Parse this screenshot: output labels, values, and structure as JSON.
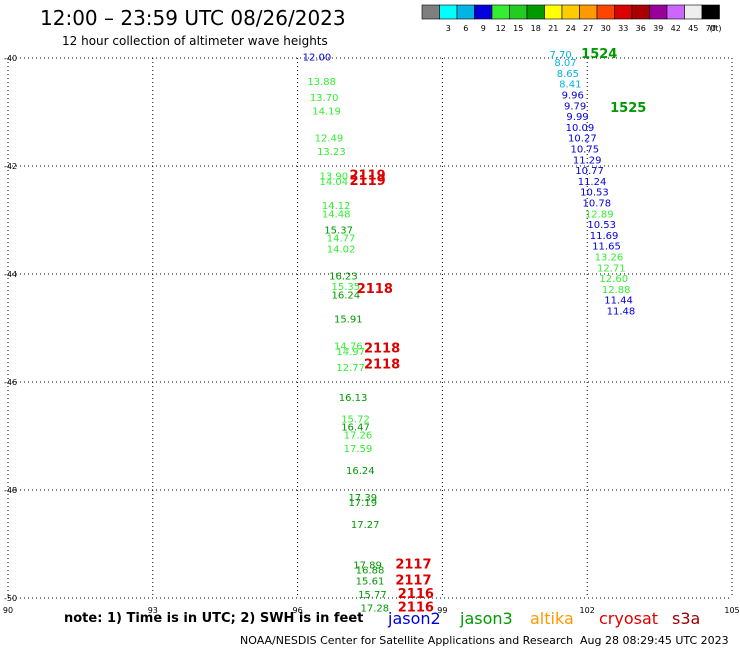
{
  "header": {
    "title": "12:00 – 23:59 UTC 08/26/2023",
    "subtitle": "12 hour collection of altimeter wave heights"
  },
  "legend": {
    "unit": "(ft)",
    "bins": [
      {
        "label": "",
        "color": "#7f7f7f"
      },
      {
        "label": "3",
        "color": "#00ffff"
      },
      {
        "label": "6",
        "color": "#00b4e6"
      },
      {
        "label": "9",
        "color": "#0000dc"
      },
      {
        "label": "12",
        "color": "#33ee33"
      },
      {
        "label": "15",
        "color": "#22cc22"
      },
      {
        "label": "18",
        "color": "#009900"
      },
      {
        "label": "21",
        "color": "#ffff00"
      },
      {
        "label": "24",
        "color": "#ffcc00"
      },
      {
        "label": "27",
        "color": "#ff9900"
      },
      {
        "label": "30",
        "color": "#ff4400"
      },
      {
        "label": "33",
        "color": "#dd0000"
      },
      {
        "label": "36",
        "color": "#aa0000"
      },
      {
        "label": "39",
        "color": "#990099"
      },
      {
        "label": "42",
        "color": "#cc66ff"
      },
      {
        "label": "45",
        "color": "#eeeeee"
      },
      {
        "label": "70",
        "color": "#000000"
      }
    ]
  },
  "chart_data": {
    "type": "scatter",
    "title": "12:00 – 23:59 UTC 08/26/2023",
    "xlim": [
      90,
      105
    ],
    "ylim": [
      -50,
      -40
    ],
    "x_ticks": [
      90,
      93,
      96,
      99,
      102,
      105
    ],
    "y_ticks": [
      -40,
      -42,
      -44,
      -46,
      -48,
      -50
    ],
    "x_tick_labels": [
      "90",
      "93",
      "96",
      "99",
      "102",
      "105"
    ],
    "y_tick_labels": [
      "-40",
      "-42",
      "-44",
      "-46",
      "-48",
      "-50"
    ],
    "grid": true,
    "wave_heights": [
      {
        "x": 96.4,
        "y": -40.05,
        "v": "12.00",
        "color": "#0000dc"
      },
      {
        "x": 96.5,
        "y": -40.5,
        "v": "13.88",
        "color": "#33ee33"
      },
      {
        "x": 96.55,
        "y": -40.8,
        "v": "13.70",
        "color": "#33ee33"
      },
      {
        "x": 96.6,
        "y": -41.05,
        "v": "14.19",
        "color": "#33ee33"
      },
      {
        "x": 96.65,
        "y": -41.55,
        "v": "12.49",
        "color": "#33ee33"
      },
      {
        "x": 96.7,
        "y": -41.8,
        "v": "13.23",
        "color": "#33ee33"
      },
      {
        "x": 96.75,
        "y": -42.25,
        "v": "13.90",
        "color": "#33ee33"
      },
      {
        "x": 96.75,
        "y": -42.35,
        "v": "14.04",
        "color": "#33ee33"
      },
      {
        "x": 96.8,
        "y": -42.8,
        "v": "14.12",
        "color": "#33ee33"
      },
      {
        "x": 96.8,
        "y": -42.95,
        "v": "14.48",
        "color": "#33ee33"
      },
      {
        "x": 96.85,
        "y": -43.25,
        "v": "15.37",
        "color": "#009900"
      },
      {
        "x": 96.9,
        "y": -43.4,
        "v": "14.77",
        "color": "#33ee33"
      },
      {
        "x": 96.9,
        "y": -43.6,
        "v": "14.02",
        "color": "#33ee33"
      },
      {
        "x": 96.95,
        "y": -44.1,
        "v": "16.23",
        "color": "#009900"
      },
      {
        "x": 97.0,
        "y": -44.3,
        "v": "15.35",
        "color": "#33ee33"
      },
      {
        "x": 97.0,
        "y": -44.45,
        "v": "16.24",
        "color": "#009900"
      },
      {
        "x": 97.05,
        "y": -44.9,
        "v": "15.91",
        "color": "#009900"
      },
      {
        "x": 97.05,
        "y": -45.4,
        "v": "14.76",
        "color": "#33ee33"
      },
      {
        "x": 97.1,
        "y": -45.5,
        "v": "14.97",
        "color": "#33ee33"
      },
      {
        "x": 97.1,
        "y": -45.8,
        "v": "12.77",
        "color": "#33ee33"
      },
      {
        "x": 97.15,
        "y": -46.35,
        "v": "16.13",
        "color": "#009900"
      },
      {
        "x": 97.2,
        "y": -46.75,
        "v": "15.72",
        "color": "#33ee33"
      },
      {
        "x": 97.2,
        "y": -46.9,
        "v": "16.47",
        "color": "#009900"
      },
      {
        "x": 97.25,
        "y": -47.05,
        "v": "17.26",
        "color": "#33ee33"
      },
      {
        "x": 97.25,
        "y": -47.3,
        "v": "17.59",
        "color": "#33ee33"
      },
      {
        "x": 97.3,
        "y": -47.7,
        "v": "16.24",
        "color": "#009900"
      },
      {
        "x": 97.35,
        "y": -48.2,
        "v": "17.39",
        "color": "#009900"
      },
      {
        "x": 97.35,
        "y": -48.3,
        "v": "17.19",
        "color": "#009900"
      },
      {
        "x": 97.4,
        "y": -48.7,
        "v": "17.27",
        "color": "#009900"
      },
      {
        "x": 97.45,
        "y": -49.45,
        "v": "17.89",
        "color": "#009900"
      },
      {
        "x": 97.5,
        "y": -49.55,
        "v": "16.88",
        "color": "#009900"
      },
      {
        "x": 97.5,
        "y": -49.75,
        "v": "15.61",
        "color": "#009900"
      },
      {
        "x": 97.55,
        "y": -50.0,
        "v": "15.77",
        "color": "#009900"
      },
      {
        "x": 97.6,
        "y": -50.25,
        "v": "17.28",
        "color": "#009900"
      },
      {
        "x": 101.45,
        "y": -40.0,
        "v": "7.70",
        "color": "#00b4e6"
      },
      {
        "x": 101.55,
        "y": -40.15,
        "v": "8.07",
        "color": "#00b4e6"
      },
      {
        "x": 101.6,
        "y": -40.35,
        "v": "8.65",
        "color": "#00b4e6"
      },
      {
        "x": 101.65,
        "y": -40.55,
        "v": "8.41",
        "color": "#00b4e6"
      },
      {
        "x": 101.7,
        "y": -40.75,
        "v": "9.96",
        "color": "#0000dc"
      },
      {
        "x": 101.75,
        "y": -40.95,
        "v": "9.79",
        "color": "#0000dc"
      },
      {
        "x": 101.8,
        "y": -41.15,
        "v": "9.99",
        "color": "#0000dc"
      },
      {
        "x": 101.85,
        "y": -41.35,
        "v": "10.09",
        "color": "#0000dc"
      },
      {
        "x": 101.9,
        "y": -41.55,
        "v": "10.27",
        "color": "#0000dc"
      },
      {
        "x": 101.95,
        "y": -41.75,
        "v": "10.75",
        "color": "#0000dc"
      },
      {
        "x": 102.0,
        "y": -41.95,
        "v": "11.29",
        "color": "#0000dc"
      },
      {
        "x": 102.05,
        "y": -42.15,
        "v": "10.77",
        "color": "#0000dc"
      },
      {
        "x": 102.1,
        "y": -42.35,
        "v": "11.24",
        "color": "#0000dc"
      },
      {
        "x": 102.15,
        "y": -42.55,
        "v": "10.53",
        "color": "#0000dc"
      },
      {
        "x": 102.2,
        "y": -42.75,
        "v": "10.78",
        "color": "#0000dc"
      },
      {
        "x": 102.25,
        "y": -42.95,
        "v": "12.89",
        "color": "#33ee33"
      },
      {
        "x": 102.3,
        "y": -43.15,
        "v": "10.53",
        "color": "#0000dc"
      },
      {
        "x": 102.35,
        "y": -43.35,
        "v": "11.69",
        "color": "#0000dc"
      },
      {
        "x": 102.4,
        "y": -43.55,
        "v": "11.65",
        "color": "#0000dc"
      },
      {
        "x": 102.45,
        "y": -43.75,
        "v": "13.26",
        "color": "#33ee33"
      },
      {
        "x": 102.5,
        "y": -43.95,
        "v": "12.71",
        "color": "#33ee33"
      },
      {
        "x": 102.55,
        "y": -44.15,
        "v": "12.60",
        "color": "#33ee33"
      },
      {
        "x": 102.6,
        "y": -44.35,
        "v": "12.88",
        "color": "#33ee33"
      },
      {
        "x": 102.65,
        "y": -44.55,
        "v": "11.44",
        "color": "#0000dc"
      },
      {
        "x": 102.7,
        "y": -44.75,
        "v": "11.48",
        "color": "#0000dc"
      }
    ],
    "pass_labels": [
      {
        "x": 97.45,
        "y": -42.25,
        "v": "2119",
        "color": "#dd0000"
      },
      {
        "x": 97.45,
        "y": -42.35,
        "v": "2119",
        "color": "#dd0000"
      },
      {
        "x": 97.6,
        "y": -44.35,
        "v": "2118",
        "color": "#dd0000"
      },
      {
        "x": 97.75,
        "y": -45.45,
        "v": "2118",
        "color": "#dd0000"
      },
      {
        "x": 97.75,
        "y": -45.75,
        "v": "2118",
        "color": "#dd0000"
      },
      {
        "x": 98.4,
        "y": -49.45,
        "v": "2117",
        "color": "#dd0000"
      },
      {
        "x": 98.4,
        "y": -49.75,
        "v": "2117",
        "color": "#dd0000"
      },
      {
        "x": 98.45,
        "y": -50.0,
        "v": "2116",
        "color": "#dd0000"
      },
      {
        "x": 98.45,
        "y": -50.25,
        "v": "2116",
        "color": "#dd0000"
      },
      {
        "x": 102.25,
        "y": -40.0,
        "v": "1524",
        "color": "#009900"
      },
      {
        "x": 102.85,
        "y": -41.0,
        "v": "1525",
        "color": "#009900"
      }
    ]
  },
  "footer": {
    "note": "note: 1) Time is in UTC; 2) SWH is in feet",
    "satellites": [
      {
        "name": "jason2",
        "color": "#0000dc"
      },
      {
        "name": "jason3",
        "color": "#009900"
      },
      {
        "name": "altika",
        "color": "#ff9900"
      },
      {
        "name": "cryosat",
        "color": "#dd0000"
      },
      {
        "name": "s3a",
        "color": "#990000"
      }
    ],
    "credit": "NOAA/NESDIS Center for Satellite Applications and Research",
    "timestamp": "Aug 28 08:29:45 UTC 2023"
  }
}
